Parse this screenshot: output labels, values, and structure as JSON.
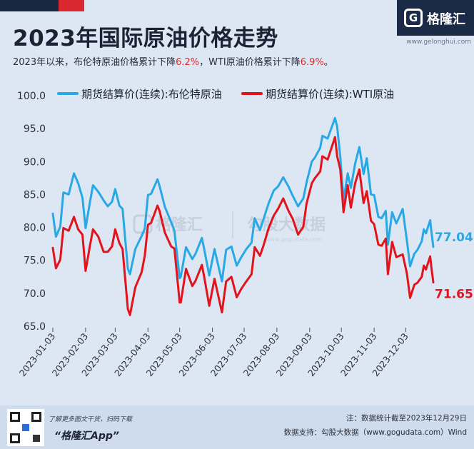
{
  "header": {
    "title": "2023年国际原油价格走势",
    "subtitle_prefix": "2023年以来，布伦特原油价格累计下降",
    "subtitle_brent_pct": "6.2%",
    "subtitle_middle": "，WTI原油价格累计下降",
    "subtitle_wti_pct": "6.9%",
    "subtitle_suffix": "。",
    "accent_red": "#e02a2a"
  },
  "brand": {
    "logo_text": "格隆汇",
    "logo_mark": "G",
    "site": "www.gelonghui.com",
    "watermark_left": "格隆汇",
    "watermark_right": "勾股大数据",
    "watermark_url": "www.gogudata.com"
  },
  "chart_data": {
    "type": "line",
    "colors": {
      "brent": "#29a8e6",
      "wti": "#e3131b"
    },
    "y_ticks": [
      "65.0",
      "70.0",
      "75.0",
      "80.0",
      "85.0",
      "90.0",
      "95.0",
      "100.0"
    ],
    "ylim": [
      65,
      100
    ],
    "x_tick_labels": [
      "2023-01-03",
      "2023-02-03",
      "2023-03-03",
      "2023-04-03",
      "2023-05-03",
      "2023-06-03",
      "2023-07-03",
      "2023-08-03",
      "2023-09-03",
      "2023-10-03",
      "2023-11-03",
      "2023-12-03"
    ],
    "grid": false,
    "legend": "top",
    "series": [
      {
        "name": "期货结算价(连续):布伦特原油",
        "key": "brent",
        "end_label": "77.04",
        "points": [
          [
            "2023-01-03",
            82.1
          ],
          [
            "2023-01-06",
            78.6
          ],
          [
            "2023-01-10",
            80.1
          ],
          [
            "2023-01-13",
            85.3
          ],
          [
            "2023-01-18",
            85.0
          ],
          [
            "2023-01-23",
            88.2
          ],
          [
            "2023-01-27",
            86.7
          ],
          [
            "2023-01-31",
            84.5
          ],
          [
            "2023-02-03",
            79.9
          ],
          [
            "2023-02-07",
            83.7
          ],
          [
            "2023-02-10",
            86.4
          ],
          [
            "2023-02-15",
            85.4
          ],
          [
            "2023-02-20",
            84.1
          ],
          [
            "2023-02-24",
            83.2
          ],
          [
            "2023-02-28",
            83.9
          ],
          [
            "2023-03-03",
            85.8
          ],
          [
            "2023-03-07",
            83.3
          ],
          [
            "2023-03-10",
            82.8
          ],
          [
            "2023-03-15",
            73.7
          ],
          [
            "2023-03-17",
            72.9
          ],
          [
            "2023-03-22",
            76.7
          ],
          [
            "2023-03-28",
            78.7
          ],
          [
            "2023-03-31",
            79.8
          ],
          [
            "2023-04-03",
            84.9
          ],
          [
            "2023-04-06",
            85.1
          ],
          [
            "2023-04-12",
            87.3
          ],
          [
            "2023-04-14",
            86.3
          ],
          [
            "2023-04-19",
            83.1
          ],
          [
            "2023-04-25",
            80.8
          ],
          [
            "2023-04-28",
            79.5
          ],
          [
            "2023-05-03",
            72.3
          ],
          [
            "2023-05-04",
            72.5
          ],
          [
            "2023-05-09",
            77.0
          ],
          [
            "2023-05-15",
            75.2
          ],
          [
            "2023-05-18",
            76.0
          ],
          [
            "2023-05-24",
            78.4
          ],
          [
            "2023-05-26",
            76.9
          ],
          [
            "2023-05-31",
            72.7
          ],
          [
            "2023-06-05",
            76.7
          ],
          [
            "2023-06-12",
            71.8
          ],
          [
            "2023-06-16",
            76.6
          ],
          [
            "2023-06-21",
            77.1
          ],
          [
            "2023-06-26",
            74.2
          ],
          [
            "2023-06-30",
            75.4
          ],
          [
            "2023-07-05",
            76.7
          ],
          [
            "2023-07-10",
            77.7
          ],
          [
            "2023-07-13",
            81.4
          ],
          [
            "2023-07-18",
            79.6
          ],
          [
            "2023-07-21",
            81.1
          ],
          [
            "2023-07-26",
            83.6
          ],
          [
            "2023-07-31",
            85.6
          ],
          [
            "2023-08-04",
            86.2
          ],
          [
            "2023-08-09",
            87.6
          ],
          [
            "2023-08-14",
            86.2
          ],
          [
            "2023-08-18",
            84.8
          ],
          [
            "2023-08-23",
            83.2
          ],
          [
            "2023-08-28",
            84.4
          ],
          [
            "2023-08-31",
            86.8
          ],
          [
            "2023-09-05",
            90.0
          ],
          [
            "2023-09-08",
            90.6
          ],
          [
            "2023-09-13",
            92.1
          ],
          [
            "2023-09-15",
            93.9
          ],
          [
            "2023-09-20",
            93.5
          ],
          [
            "2023-09-27",
            96.6
          ],
          [
            "2023-09-29",
            95.3
          ],
          [
            "2023-10-02",
            90.7
          ],
          [
            "2023-10-05",
            84.1
          ],
          [
            "2023-10-09",
            88.2
          ],
          [
            "2023-10-12",
            86.0
          ],
          [
            "2023-10-16",
            89.7
          ],
          [
            "2023-10-20",
            92.2
          ],
          [
            "2023-10-24",
            88.1
          ],
          [
            "2023-10-27",
            90.5
          ],
          [
            "2023-10-31",
            85.0
          ],
          [
            "2023-11-03",
            84.9
          ],
          [
            "2023-11-07",
            81.6
          ],
          [
            "2023-11-10",
            81.4
          ],
          [
            "2023-11-14",
            82.5
          ],
          [
            "2023-11-16",
            77.4
          ],
          [
            "2023-11-20",
            82.3
          ],
          [
            "2023-11-24",
            80.6
          ],
          [
            "2023-11-30",
            82.8
          ],
          [
            "2023-12-04",
            78.0
          ],
          [
            "2023-12-07",
            74.1
          ],
          [
            "2023-12-11",
            76.0
          ],
          [
            "2023-12-14",
            76.6
          ],
          [
            "2023-12-18",
            77.9
          ],
          [
            "2023-12-20",
            79.7
          ],
          [
            "2023-12-22",
            79.1
          ],
          [
            "2023-12-26",
            81.1
          ],
          [
            "2023-12-27",
            79.6
          ],
          [
            "2023-12-29",
            77.04
          ]
        ]
      },
      {
        "name": "期货结算价(连续):WTI原油",
        "key": "wti",
        "end_label": "71.65",
        "points": [
          [
            "2023-01-03",
            76.9
          ],
          [
            "2023-01-06",
            73.8
          ],
          [
            "2023-01-10",
            75.1
          ],
          [
            "2023-01-13",
            79.9
          ],
          [
            "2023-01-18",
            79.5
          ],
          [
            "2023-01-23",
            81.6
          ],
          [
            "2023-01-27",
            79.7
          ],
          [
            "2023-01-31",
            78.9
          ],
          [
            "2023-02-03",
            73.4
          ],
          [
            "2023-02-07",
            77.1
          ],
          [
            "2023-02-10",
            79.7
          ],
          [
            "2023-02-15",
            78.6
          ],
          [
            "2023-02-20",
            76.3
          ],
          [
            "2023-02-24",
            76.3
          ],
          [
            "2023-02-28",
            77.1
          ],
          [
            "2023-03-03",
            79.7
          ],
          [
            "2023-03-07",
            77.6
          ],
          [
            "2023-03-10",
            76.7
          ],
          [
            "2023-03-15",
            67.6
          ],
          [
            "2023-03-17",
            66.7
          ],
          [
            "2023-03-22",
            70.9
          ],
          [
            "2023-03-28",
            73.2
          ],
          [
            "2023-03-31",
            75.7
          ],
          [
            "2023-04-03",
            80.4
          ],
          [
            "2023-04-06",
            80.7
          ],
          [
            "2023-04-12",
            83.3
          ],
          [
            "2023-04-14",
            82.5
          ],
          [
            "2023-04-19",
            79.2
          ],
          [
            "2023-04-25",
            77.1
          ],
          [
            "2023-04-28",
            76.8
          ],
          [
            "2023-05-03",
            68.6
          ],
          [
            "2023-05-04",
            68.6
          ],
          [
            "2023-05-09",
            73.7
          ],
          [
            "2023-05-15",
            71.1
          ],
          [
            "2023-05-18",
            71.9
          ],
          [
            "2023-05-24",
            74.3
          ],
          [
            "2023-05-26",
            72.7
          ],
          [
            "2023-05-31",
            68.1
          ],
          [
            "2023-06-05",
            72.2
          ],
          [
            "2023-06-12",
            67.1
          ],
          [
            "2023-06-16",
            71.8
          ],
          [
            "2023-06-21",
            72.5
          ],
          [
            "2023-06-26",
            69.4
          ],
          [
            "2023-06-30",
            70.6
          ],
          [
            "2023-07-05",
            71.8
          ],
          [
            "2023-07-10",
            72.9
          ],
          [
            "2023-07-13",
            77.0
          ],
          [
            "2023-07-18",
            75.7
          ],
          [
            "2023-07-21",
            77.1
          ],
          [
            "2023-07-26",
            79.8
          ],
          [
            "2023-07-31",
            81.8
          ],
          [
            "2023-08-04",
            82.8
          ],
          [
            "2023-08-09",
            84.4
          ],
          [
            "2023-08-14",
            82.5
          ],
          [
            "2023-08-18",
            81.3
          ],
          [
            "2023-08-23",
            78.9
          ],
          [
            "2023-08-28",
            80.1
          ],
          [
            "2023-08-31",
            83.6
          ],
          [
            "2023-09-05",
            86.7
          ],
          [
            "2023-09-08",
            87.5
          ],
          [
            "2023-09-13",
            88.5
          ],
          [
            "2023-09-15",
            90.8
          ],
          [
            "2023-09-20",
            90.3
          ],
          [
            "2023-09-27",
            93.7
          ],
          [
            "2023-09-29",
            90.8
          ],
          [
            "2023-10-02",
            88.8
          ],
          [
            "2023-10-05",
            82.3
          ],
          [
            "2023-10-09",
            86.4
          ],
          [
            "2023-10-12",
            83.0
          ],
          [
            "2023-10-16",
            86.7
          ],
          [
            "2023-10-20",
            88.8
          ],
          [
            "2023-10-24",
            83.7
          ],
          [
            "2023-10-27",
            85.5
          ],
          [
            "2023-10-31",
            81.0
          ],
          [
            "2023-11-03",
            80.5
          ],
          [
            "2023-11-07",
            77.4
          ],
          [
            "2023-11-10",
            77.2
          ],
          [
            "2023-11-14",
            78.3
          ],
          [
            "2023-11-16",
            72.9
          ],
          [
            "2023-11-20",
            77.8
          ],
          [
            "2023-11-24",
            75.5
          ],
          [
            "2023-11-30",
            75.9
          ],
          [
            "2023-12-04",
            73.0
          ],
          [
            "2023-12-07",
            69.3
          ],
          [
            "2023-12-11",
            71.3
          ],
          [
            "2023-12-14",
            71.6
          ],
          [
            "2023-12-18",
            72.5
          ],
          [
            "2023-12-20",
            74.2
          ],
          [
            "2023-12-22",
            73.6
          ],
          [
            "2023-12-26",
            75.6
          ],
          [
            "2023-12-27",
            74.1
          ],
          [
            "2023-12-29",
            71.65
          ]
        ]
      }
    ]
  },
  "footer": {
    "promo_line": "了解更多图文干货，扫码下载",
    "app_name": "“格隆汇App”",
    "note": "注：数据统计截至2023年12月29日",
    "source": "数据支持：勾股大数据（www.gogudata.com）Wind"
  }
}
